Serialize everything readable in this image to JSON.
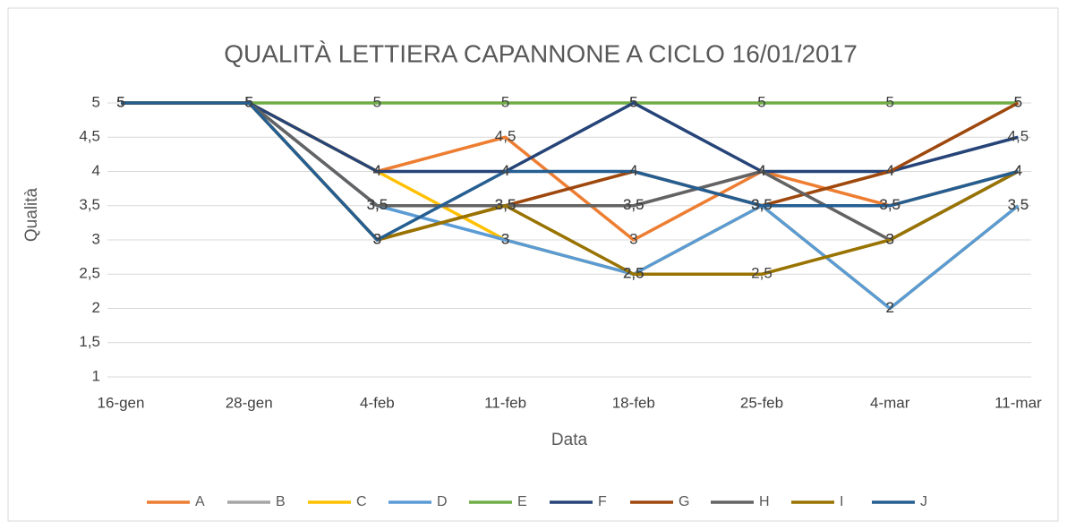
{
  "chart_data": {
    "type": "line",
    "title": "QUALITÀ LETTIERA CAPANNONE A CICLO 16/01/2017",
    "x_label": "Data",
    "y_label": "Qualità",
    "categories": [
      "16-gen",
      "28-gen",
      "4-feb",
      "11-feb",
      "18-feb",
      "25-feb",
      "4-mar",
      "11-mar"
    ],
    "ylim": [
      1,
      5
    ],
    "yticks": [
      1,
      {
        "value": 1.5,
        "label": "1,5"
      },
      2,
      {
        "value": 2.5,
        "label": "2,5"
      },
      3,
      {
        "value": 3.5,
        "label": "3,5"
      },
      4,
      {
        "value": 4.5,
        "label": "4,5"
      },
      5
    ],
    "grid": true,
    "legend": "bottom",
    "series": [
      {
        "name": "A",
        "color": "#ed7d31",
        "values": [
          5,
          5,
          4,
          4.5,
          3,
          4,
          3.5,
          4
        ],
        "value_labels": [
          "5",
          "5",
          "4",
          "4,5",
          "3",
          "4",
          "3,5",
          "4"
        ]
      },
      {
        "name": "B",
        "color": "#a5a5a5",
        "values": [
          5,
          5,
          3.5,
          3.5,
          3.5,
          4,
          3,
          4
        ],
        "value_labels": [
          "5",
          "5",
          "3,5",
          "3,5",
          "3,5",
          "4",
          "3",
          "4"
        ]
      },
      {
        "name": "C",
        "color": "#ffc000",
        "values": [
          5,
          5,
          4,
          3,
          2.5,
          3.5,
          2,
          3.5
        ],
        "value_labels": [
          "5",
          "5",
          "4",
          "3",
          "2,5",
          "3,5",
          "2",
          "3,5"
        ]
      },
      {
        "name": "D",
        "color": "#5b9bd5",
        "values": [
          5,
          5,
          3.5,
          3,
          2.5,
          3.5,
          2,
          3.5
        ],
        "value_labels": [
          "5",
          "5",
          "3,5",
          "3",
          "2,5",
          "3,5",
          "2",
          "3,5"
        ]
      },
      {
        "name": "E",
        "color": "#70ad47",
        "values": [
          5,
          5,
          5,
          5,
          5,
          5,
          5,
          5
        ],
        "value_labels": [
          "5",
          "5",
          "5",
          "5",
          "5",
          "5",
          "5",
          "5"
        ]
      },
      {
        "name": "F",
        "color": "#264478",
        "values": [
          5,
          5,
          4,
          4,
          5,
          4,
          4,
          4.5
        ],
        "value_labels": [
          "5",
          "5",
          "4",
          "4",
          "5",
          "4",
          "4",
          "4,5"
        ]
      },
      {
        "name": "G",
        "color": "#9e480e",
        "values": [
          5,
          5,
          3,
          3.5,
          4,
          3.5,
          4,
          5
        ],
        "value_labels": [
          "5",
          "5",
          "3",
          "3,5",
          "4",
          "3,5",
          "4",
          "5"
        ]
      },
      {
        "name": "H",
        "color": "#636363",
        "values": [
          5,
          5,
          3.5,
          3.5,
          3.5,
          4,
          3,
          4
        ],
        "value_labels": [
          "5",
          "5",
          "3,5",
          "3,5",
          "3,5",
          "4",
          "3",
          "4"
        ]
      },
      {
        "name": "I",
        "color": "#997300",
        "values": [
          5,
          5,
          3,
          3.5,
          2.5,
          2.5,
          3,
          4
        ],
        "value_labels": [
          "5",
          "5",
          "3",
          "3,5",
          "2,5",
          "2,5",
          "3",
          "4"
        ]
      },
      {
        "name": "J",
        "color": "#255e91",
        "values": [
          5,
          5,
          3,
          4,
          4,
          3.5,
          3.5,
          4
        ],
        "value_labels": [
          "5",
          "5",
          "3",
          "4",
          "4",
          "3,5",
          "3,5",
          "4"
        ]
      }
    ]
  }
}
